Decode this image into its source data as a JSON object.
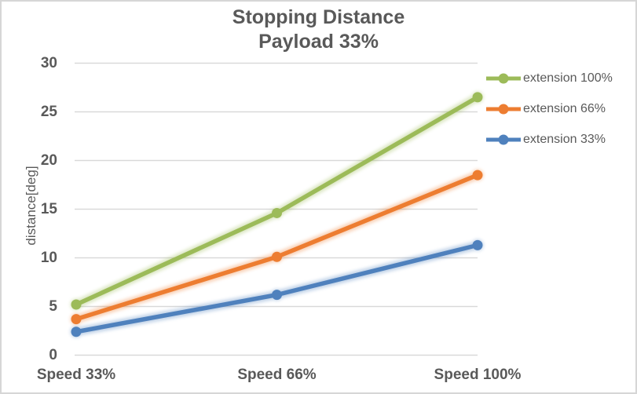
{
  "window": {
    "background": "#FFFFFF",
    "border_color": "#D6D6D6"
  },
  "title": {
    "line1": "Stopping Distance",
    "line2": "Payload 33%"
  },
  "y_axis": {
    "title": "distance[deg]",
    "tick_labels": [
      "0",
      "5",
      "10",
      "15",
      "20",
      "25",
      "30"
    ]
  },
  "x_axis": {
    "labels": [
      "Speed 33%",
      "Speed 66%",
      "Speed 100%"
    ]
  },
  "legend": {
    "position": "right",
    "items": [
      {
        "label": "extension 100%",
        "color": "#9CBB59"
      },
      {
        "label": "extension 66%",
        "color": "#ED7D31"
      },
      {
        "label": "extension 33%",
        "color": "#4F81BD"
      }
    ]
  },
  "colors": {
    "text": "#595959",
    "gridline": "#D9D9D9",
    "series_green": "#9CBB59",
    "series_orange": "#ED7D31",
    "series_blue": "#4F81BD"
  },
  "chart_data": {
    "type": "line",
    "title": "Stopping Distance",
    "subtitle": "Payload 33%",
    "categories": [
      "Speed 33%",
      "Speed 66%",
      "Speed 100%"
    ],
    "series": [
      {
        "name": "extension 100%",
        "color": "#9CBB59",
        "values": [
          5.2,
          14.6,
          26.5
        ]
      },
      {
        "name": "extension 66%",
        "color": "#ED7D31",
        "values": [
          3.7,
          10.1,
          18.5
        ]
      },
      {
        "name": "extension 33%",
        "color": "#4F81BD",
        "values": [
          2.4,
          6.2,
          11.3
        ]
      }
    ],
    "xlabel": "",
    "ylabel": "distance[deg]",
    "ylim": [
      0,
      30
    ],
    "ytick_step": 5,
    "grid": true,
    "legend_position": "right",
    "marker": "circle"
  }
}
